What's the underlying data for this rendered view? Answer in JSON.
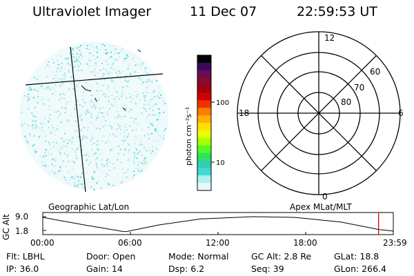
{
  "header": {
    "title": "Ultraviolet Imager",
    "date": "11 Dec 07",
    "time": "22:59:53 UT"
  },
  "colorbar": {
    "label": "photon cm⁻²s⁻¹",
    "ticks": [
      "100",
      "10"
    ],
    "colors": [
      "#000000",
      "#3a0a5a",
      "#6a0a5a",
      "#8a0a2a",
      "#a00010",
      "#d00000",
      "#f03000",
      "#ff7a00",
      "#ffb000",
      "#ffe000",
      "#e8ff00",
      "#a8ff00",
      "#50ff20",
      "#30e060",
      "#30d0b0",
      "#40d8d8",
      "#b0f0f0",
      "#e8f8f8"
    ]
  },
  "image": {
    "caption": "Geographic Lat/Lon",
    "speckle_color": "#40d8d8"
  },
  "polar": {
    "caption": "Apex MLat/MLT",
    "mlt_labels": {
      "top": "12",
      "right": "6",
      "bottom": "0",
      "left": "18"
    },
    "lat_labels": [
      "60",
      "70",
      "80"
    ]
  },
  "timeline": {
    "ylabel": "GC Alt",
    "y_ticks": [
      "9.0",
      "1.8"
    ],
    "x_ticks": [
      "00:00",
      "06:00",
      "12:00",
      "18:00",
      "23:59"
    ],
    "marker_color": "#e00000",
    "current_fraction": 0.958
  },
  "info": {
    "filter": "Flt: LBHL",
    "door": "Door: Open",
    "mode": "Mode: Normal",
    "gc_alt": "GC Alt: 2.8 Re",
    "glat": "GLat:  18.8",
    "ip": "IP: 36.0",
    "gain": "Gain: 14",
    "dsp": "Dsp:     6.2",
    "seq": "Seq: 39",
    "glon": "GLon: 266.4"
  }
}
